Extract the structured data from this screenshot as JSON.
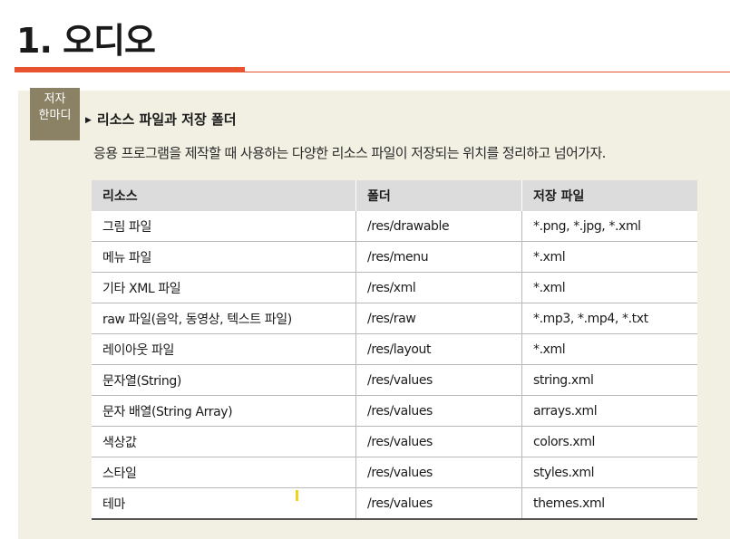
{
  "title": "1. 오디오",
  "author_tag": {
    "line1": "저자",
    "line2": "한마디"
  },
  "subheading": "리소스 파일과 저장 폴더",
  "subheading_marker": "▶",
  "description": "응용 프로그램을 제작할 때 사용하는 다양한 리소스 파일이 저장되는 위치를 정리하고 넘어가자.",
  "table": {
    "headers": [
      "리소스",
      "폴더",
      "저장 파일"
    ],
    "rows": [
      [
        "그림 파일",
        "/res/drawable",
        "*.png, *.jpg, *.xml"
      ],
      [
        "메뉴 파일",
        "/res/menu",
        "*.xml"
      ],
      [
        "기타 XML 파일",
        "/res/xml",
        "*.xml"
      ],
      [
        "raw 파일(음악, 동영상, 텍스트 파일)",
        "/res/raw",
        "*.mp3, *.mp4, *.txt"
      ],
      [
        "레이아웃 파일",
        "/res/layout",
        "*.xml"
      ],
      [
        "문자열(String)",
        "/res/values",
        "string.xml"
      ],
      [
        "문자 배열(String Array)",
        "/res/values",
        "arrays.xml"
      ],
      [
        "색상값",
        "/res/values",
        "colors.xml"
      ],
      [
        "스타일",
        "/res/values",
        "styles.xml"
      ],
      [
        "테마",
        "/res/values",
        "themes.xml"
      ]
    ]
  },
  "colors": {
    "accent_red": "#e8532f",
    "panel_bg": "#f2f0e3",
    "tag_bg": "#8b8266",
    "header_bg": "#dcdcdc"
  }
}
